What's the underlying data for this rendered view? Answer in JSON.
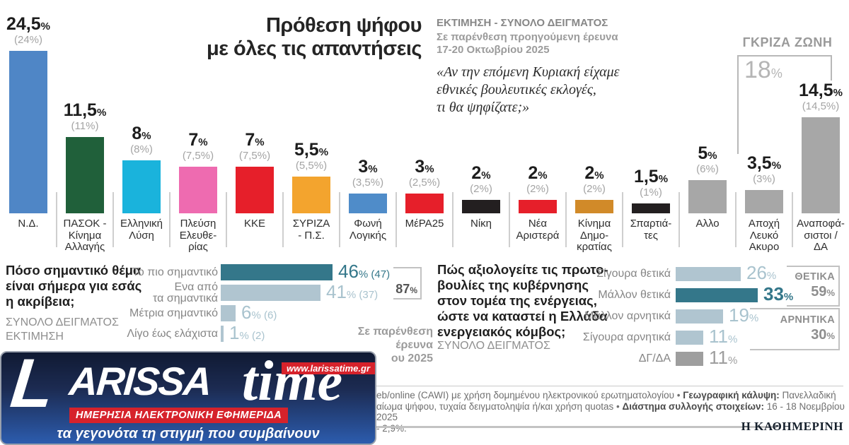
{
  "header": {
    "title": "Πρόθεση ψήφου\nμε όλες τις απαντήσεις",
    "estimate_label": "ΕΚΤΙΜΗΣΗ - ΣΥΝΟΛΟ ΔΕΙΓΜΑΤΟΣ",
    "estimate_note": "Σε παρένθεση προηγούμενη έρευνα\n17-20 Οκτωβρίου 2025",
    "question_quote": "«Αν την επόμενη Κυριακή είχαμε\nεθνικές βουλευτικές εκλογές,\nτι θα ψηφίζατε;»"
  },
  "colors": {
    "teal_dark": "#34778a",
    "teal_light": "#b0c5d0",
    "steel_text": "#a9c3ce",
    "bar_gray": "#9e9e9e",
    "accent_red": "#d6222b",
    "paren_gray": "#a4a4a4"
  },
  "chart_data": [
    {
      "type": "bar",
      "title": "Πρόθεση ψήφου με όλες τις απαντήσεις",
      "subtitle": "ΕΚΤΙΜΗΣΗ - ΣΥΝΟΛΟ ΔΕΙΓΜΑΤΟΣ",
      "note": "Σε παρένθεση προηγούμενη έρευνα 17-20 Οκτωβρίου 2025",
      "question": "«Αν την επόμενη Κυριακή είχαμε εθνικές βουλευτικές εκλογές, τι θα ψηφίζατε;»",
      "unit": "%",
      "categories": [
        "Ν.Δ.",
        "ΠΑΣΟΚ - Κίνημα Αλλαγής",
        "Ελληνική Λύση",
        "Πλεύση Ελευθερίας",
        "ΚΚΕ",
        "ΣΥΡΙΖΑ - Π.Σ.",
        "Φωνή Λογικής",
        "ΜέΡΑ25",
        "Νίκη",
        "Νέα Αριστερά",
        "Κίνημα Δημοκρατίας",
        "Σπαρτιάτες",
        "Αλλο",
        "Αποχή Λευκό Ακυρο",
        "Αναποφάσιστοι / ΔΑ"
      ],
      "labels_display": [
        "Ν.Δ.",
        "ΠΑΣΟΚ -\nΚίνημα\nΑλλαγής",
        "Ελληνική\nΛύση",
        "Πλεύση\nΕλευθε-\nρίας",
        "ΚΚΕ",
        "ΣΥΡΙΖΑ\n- Π.Σ.",
        "Φωνή\nΛογικής",
        "ΜέΡΑ25",
        "Νίκη",
        "Νέα\nΑριστερά",
        "Κίνημα\nΔημο-\nκρατίας",
        "Σπαρτιά-\nτες",
        "Αλλο",
        "Αποχή\nΛευκό\nΑκυρο",
        "Αναποφά-\nσιστοι /\nΔΑ"
      ],
      "values": [
        24.5,
        11.5,
        8,
        7,
        7,
        5.5,
        3,
        3,
        2,
        2,
        2,
        1.5,
        5,
        3.5,
        14.5
      ],
      "value_labels": [
        "24,5",
        "11,5",
        "8",
        "7",
        "7",
        "5,5",
        "3",
        "3",
        "2",
        "2",
        "2",
        "1,5",
        "5",
        "3,5",
        "14,5"
      ],
      "previous": [
        24,
        11,
        8,
        7.5,
        7.5,
        5.5,
        3.5,
        2.5,
        2,
        2,
        2,
        1,
        6,
        3,
        14.5
      ],
      "previous_labels": [
        "(24%)",
        "(11%)",
        "(8%)",
        "(7,5%)",
        "(7,5%)",
        "(5,5%)",
        "(3,5%)",
        "(2,5%)",
        "(2%)",
        "(2%)",
        "(2%)",
        "(1%)",
        "(6%)",
        "(3%)",
        "(14,5%)"
      ],
      "colors": [
        "#4f86c6",
        "#20603a",
        "#1ab3dc",
        "#ee6bb0",
        "#e61f2a",
        "#f3a42e",
        "#4f8cc9",
        "#e61f2a",
        "#231f20",
        "#e61f2a",
        "#d18a29",
        "#231f20",
        "#a7a7a7",
        "#a7a7a7",
        "#a7a7a7"
      ],
      "gray_zone": {
        "label": "ΓΚΡΙΖΑ ΖΩΝΗ",
        "value": 18,
        "display": "18"
      }
    },
    {
      "type": "bar",
      "question": "Πόσο σημαντικό θέμα\nείναι σήμερα για εσάς\nη ακρίβεια;",
      "sample": "ΣΥΝΟΛΟ ΔΕΙΓΜΑΤΟΣ\nΕΚΤΙΜΗΣΗ",
      "categories": [
        "Το πιο σημαντικό",
        "Ενα από τα σημαντικά",
        "Μέτρια σημαντικό",
        "Λίγο έως ελάχιστα"
      ],
      "labels_display": [
        "Το πιο σημαντικό",
        "Ενα από\nτα σημαντικά",
        "Μέτρια σημαντικό",
        "Λίγο έως ελάχιστα"
      ],
      "values": [
        46,
        41,
        6,
        1
      ],
      "value_labels": [
        "46",
        "41",
        "6",
        "1"
      ],
      "previous": [
        47,
        37,
        6,
        2
      ],
      "previous_labels": [
        "(47)",
        "(37)",
        "(6)",
        "(2)"
      ],
      "emphasis": [
        true,
        false,
        false,
        false
      ],
      "combined": {
        "value": 87,
        "display": "87"
      },
      "note": "Σε παρένθεση\nέρευνα\nου 2025"
    },
    {
      "type": "bar",
      "question": "Πώς αξιολογείτε τις πρωτο-\nβουλίες της κυβέρνησης\nστον τομέα της ενέργειας,\nώστε να καταστεί η Ελλάδα\nενεργειακός κόμβος;",
      "sample": "ΣΥΝΟΛΟ ΔΕΙΓΜΑΤΟΣ",
      "categories": [
        "Σίγουρα θετικά",
        "Μάλλον θετικά",
        "Μάλλον αρνητικά",
        "Σίγουρα αρνητικά",
        "ΔΓ/ΔΑ"
      ],
      "values": [
        26,
        33,
        19,
        11,
        11
      ],
      "value_labels": [
        "26",
        "33",
        "19",
        "11",
        "11"
      ],
      "emphasis": [
        false,
        true,
        false,
        false,
        false
      ],
      "gray_row": [
        false,
        false,
        false,
        false,
        true
      ],
      "groups": [
        {
          "label": "ΘΕΤΙΚΑ",
          "value": 59,
          "display": "59"
        },
        {
          "label": "ΑΡΝΗΤΙΚΑ",
          "value": 30,
          "display": "30"
        }
      ]
    }
  ],
  "footer": {
    "lines": [
      [
        {
          "t": "eb/online (CAWI) με χρήση δομημένου ηλεκτρονικού ερωτηματολογίου • "
        },
        {
          "t": "Γεωγραφική κάλυψη:",
          "b": true
        },
        {
          "t": " Πανελλαδική"
        }
      ],
      [
        {
          "t": "αίωμα ψήφου, τυχαία δειγματοληψία ή/και χρήση quotas • "
        },
        {
          "t": "Διάστημα συλλογής στοιχείων:",
          "b": true
        },
        {
          "t": " 16 - 18 Νοεμβρίου 2025"
        }
      ],
      [
        {
          "t": "- 2,9%."
        }
      ]
    ],
    "brand": "Η ΚΑΘΗΜΕΡΙΝΗ"
  },
  "logo": {
    "letter": "L",
    "name_part1": "ARISSA",
    "name_part2": "time",
    "url": "www.larissatime.gr",
    "strip": "ΗΜΕΡΗΣΙΑ ΗΛΕΚΤΡΟΝΙΚΗ ΕΦΗΜΕΡΙΔΑ",
    "tagline": "τα γεγονότα τη στιγμή που συμβαίνουν"
  }
}
